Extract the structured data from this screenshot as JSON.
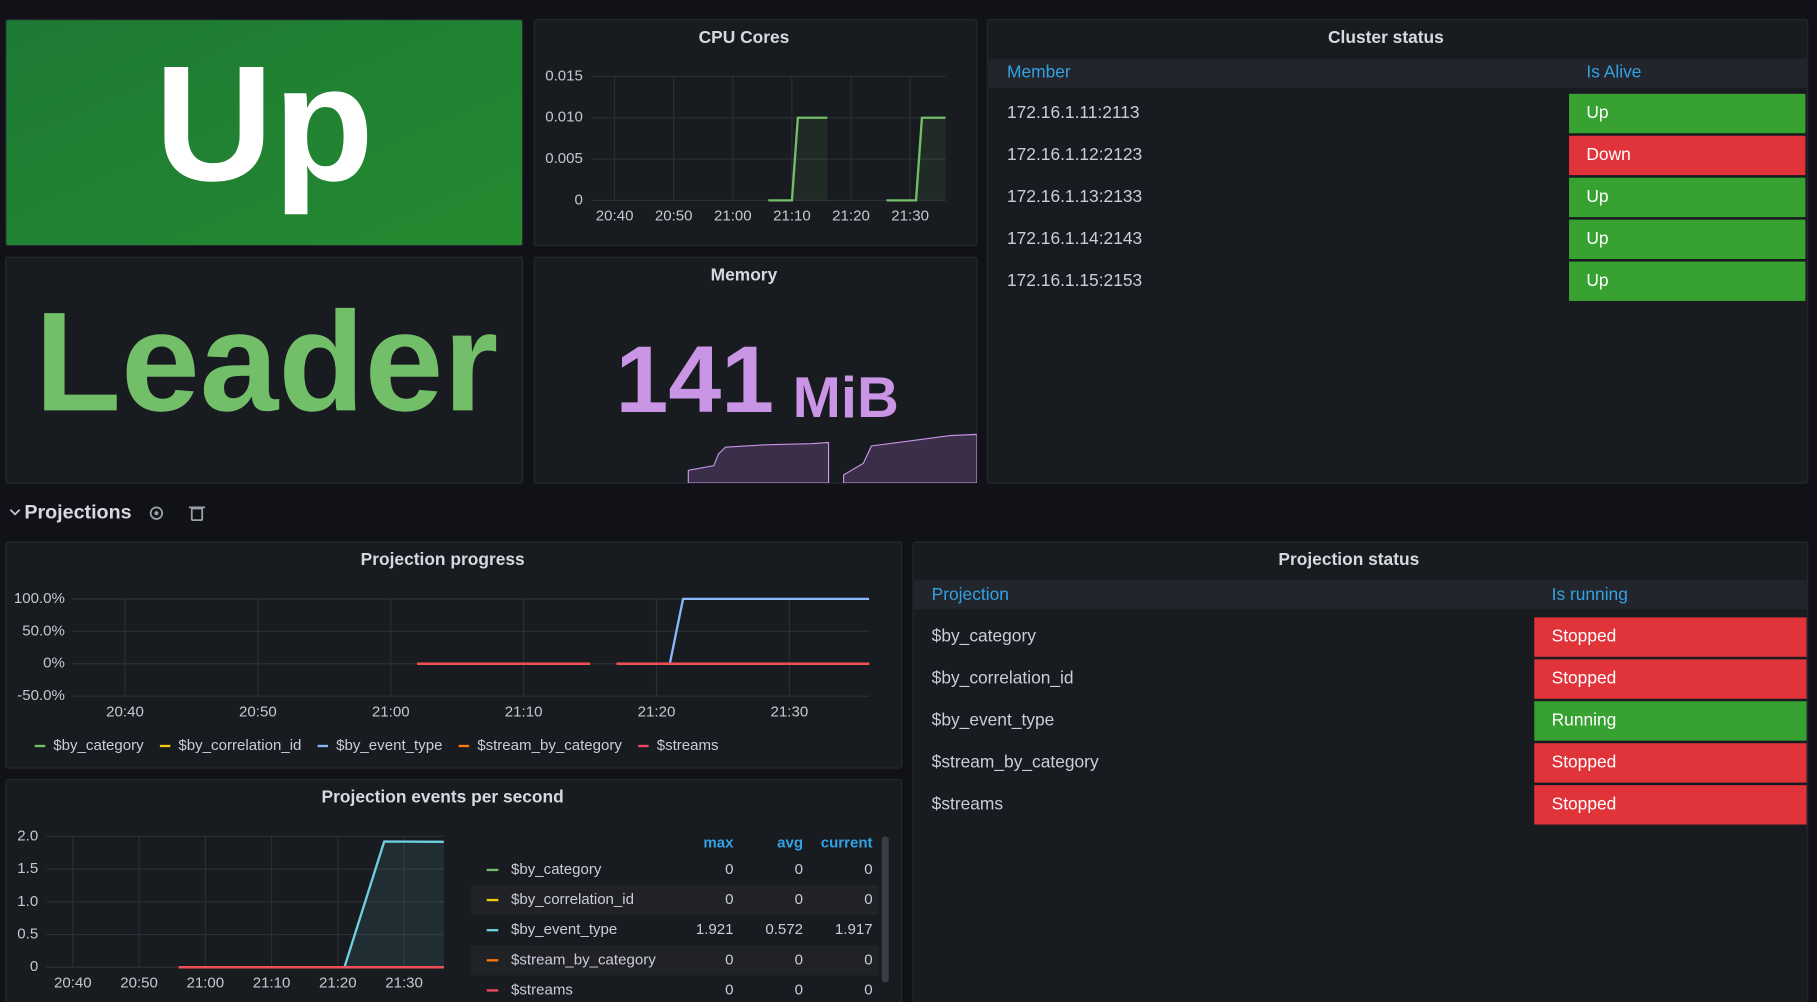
{
  "status_panel": {
    "value": "Up"
  },
  "role_panel": {
    "value": "Leader"
  },
  "memory_panel": {
    "title": "Memory",
    "value": "141",
    "unit": "MiB"
  },
  "chart_data": [
    {
      "type": "line",
      "title": "CPU Cores",
      "grid": true,
      "area": true,
      "xlim": [
        "20:36",
        "21:36"
      ],
      "xticks": [
        "20:40",
        "20:50",
        "21:00",
        "21:10",
        "21:20",
        "21:30"
      ],
      "ylim": [
        0,
        0.015
      ],
      "yticks": [
        0,
        0.005,
        {
          "value": 0.01,
          "label": "0.010"
        },
        0.015
      ],
      "series": [
        {
          "color": "#73bf69",
          "x": [
            "21:06",
            "21:10",
            "21:11",
            "21:16",
            "21:21",
            "21:26",
            "21:31",
            "21:32",
            "21:36"
          ],
          "values": [
            0,
            0,
            0.01,
            0.01,
            null,
            0,
            0,
            0.01,
            0.01
          ]
        }
      ]
    },
    {
      "type": "line",
      "title": "Projection progress",
      "grid": true,
      "area": false,
      "xlim": [
        "20:36",
        "21:36"
      ],
      "xticks": [
        "20:40",
        "20:50",
        "21:00",
        "21:10",
        "21:20",
        "21:30"
      ],
      "ylim": [
        -50,
        100
      ],
      "yticks": [
        {
          "value": 100,
          "label": "100.0%"
        },
        {
          "value": 50,
          "label": "50.0%"
        },
        {
          "value": 0,
          "label": "0%"
        },
        {
          "value": -50,
          "label": "-50.0%"
        }
      ],
      "series": [
        {
          "name": "$by_category",
          "color": "#73bf69",
          "x": [
            "21:02",
            "21:15",
            "21:16",
            "21:17",
            "21:36"
          ],
          "values": [
            0,
            0,
            null,
            0,
            0
          ]
        },
        {
          "name": "$by_correlation_id",
          "color": "#f2cc0c",
          "x": [
            "21:02",
            "21:15",
            "21:16",
            "21:17",
            "21:36"
          ],
          "values": [
            0,
            0,
            null,
            0,
            0
          ]
        },
        {
          "name": "$by_event_type",
          "color": "#8ab8ff",
          "x": [
            "21:21",
            "21:22",
            "21:36"
          ],
          "values": [
            0,
            100,
            100
          ]
        },
        {
          "name": "$stream_by_category",
          "color": "#ff780a",
          "x": [
            "21:02",
            "21:15",
            "21:16",
            "21:17",
            "21:36"
          ],
          "values": [
            0,
            0,
            null,
            0,
            0
          ]
        },
        {
          "name": "$streams",
          "color": "#f2495c",
          "x": [
            "21:02",
            "21:15",
            "21:16",
            "21:17",
            "21:36"
          ],
          "values": [
            0,
            0,
            null,
            0,
            0
          ]
        }
      ]
    },
    {
      "type": "line",
      "title": "Projection events per second",
      "grid": true,
      "area": true,
      "xlim": [
        "20:36",
        "21:36"
      ],
      "xticks": [
        "20:40",
        "20:50",
        "21:00",
        "21:10",
        "21:20",
        "21:30"
      ],
      "ylim": [
        0,
        2
      ],
      "yticks": [
        0,
        0.5,
        {
          "value": 1,
          "label": "1.0"
        },
        1.5,
        {
          "value": 2,
          "label": "2.0"
        }
      ],
      "legend_columns": [
        "max",
        "avg",
        "current"
      ],
      "series": [
        {
          "name": "$by_category",
          "color": "#73bf69",
          "x": [
            "20:56",
            "21:36"
          ],
          "values": [
            0,
            0
          ],
          "max": 0,
          "avg": 0,
          "current": 0
        },
        {
          "name": "$by_correlation_id",
          "color": "#f2cc0c",
          "x": [
            "20:56",
            "21:36"
          ],
          "values": [
            0,
            0
          ],
          "max": 0,
          "avg": 0,
          "current": 0
        },
        {
          "name": "$by_event_type",
          "color": "#6ed0e0",
          "x": [
            "21:21",
            "21:27",
            "21:36"
          ],
          "values": [
            0,
            1.921,
            1.917
          ],
          "max": 1.921,
          "avg": 0.572,
          "current": 1.917
        },
        {
          "name": "$stream_by_category",
          "color": "#ff780a",
          "x": [
            "20:56",
            "21:36"
          ],
          "values": [
            0,
            0
          ],
          "max": 0,
          "avg": 0,
          "current": 0
        },
        {
          "name": "$streams",
          "color": "#f2495c",
          "x": [
            "20:56",
            "21:36"
          ],
          "values": [
            0,
            0
          ],
          "max": 0,
          "avg": 0,
          "current": 0
        }
      ]
    }
  ],
  "cluster_status": {
    "title": "Cluster status",
    "header": [
      "Member",
      "Is Alive"
    ],
    "rows": [
      {
        "name": "172.16.1.11:2113",
        "state": "Up",
        "color": "#37a232"
      },
      {
        "name": "172.16.1.12:2123",
        "state": "Down",
        "color": "#e0333a"
      },
      {
        "name": "172.16.1.13:2133",
        "state": "Up",
        "color": "#37a232"
      },
      {
        "name": "172.16.1.14:2143",
        "state": "Up",
        "color": "#37a232"
      },
      {
        "name": "172.16.1.15:2153",
        "state": "Up",
        "color": "#37a232"
      }
    ]
  },
  "row": {
    "title": "Projections"
  },
  "projection_status": {
    "title": "Projection status",
    "header": [
      "Projection",
      "Is running"
    ],
    "rows": [
      {
        "name": "$by_category",
        "state": "Stopped",
        "color": "#e0333a"
      },
      {
        "name": "$by_correlation_id",
        "state": "Stopped",
        "color": "#e0333a"
      },
      {
        "name": "$by_event_type",
        "state": "Running",
        "color": "#37a232"
      },
      {
        "name": "$stream_by_category",
        "state": "Stopped",
        "color": "#e0333a"
      },
      {
        "name": "$streams",
        "state": "Stopped",
        "color": "#e0333a"
      }
    ]
  }
}
